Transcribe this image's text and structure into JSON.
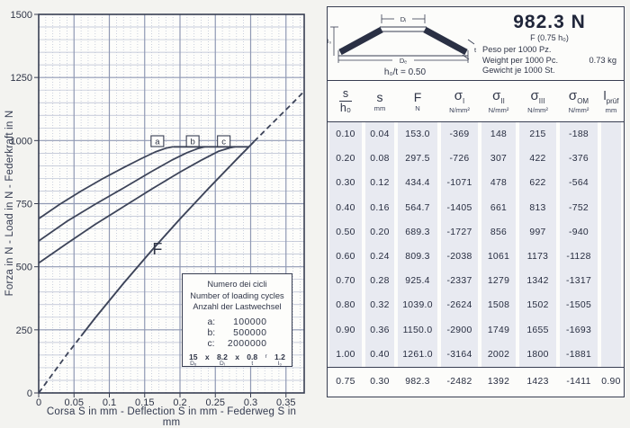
{
  "colors": {
    "ink": "#383e52",
    "curve": "#3d4459",
    "grid_minor": "#b6bdd0",
    "grid_major": "#9099b4",
    "row_tint": "#e8eaf1",
    "plot_bg": "#fdfdfb"
  },
  "spec": {
    "force": "982.3 N",
    "force_note": "F (0.75 h₀)",
    "weight_lines": [
      {
        "t": "Peso per 1000 Pz.",
        "v": ""
      },
      {
        "t": "Weight per 1000 Pc.",
        "v": "0.73 kg"
      },
      {
        "t": "Gewicht je 1000 St.",
        "v": ""
      }
    ],
    "ratio": "h₀/t = 0.50",
    "dims": {
      "inner": "Dᵢ",
      "outer": "Dₑ",
      "height": "l₀",
      "thickness": "t"
    }
  },
  "cycles_box": {
    "title_lines": [
      "Numero dei cicli",
      "Number of loading cycles",
      "Anzahl der Lastwechsel"
    ],
    "entries": [
      {
        "k": "a:",
        "v": "100000"
      },
      {
        "k": "b:",
        "v": "500000"
      },
      {
        "k": "c:",
        "v": "2000000"
      }
    ],
    "dims": [
      {
        "v": "15",
        "l": "Dₑ"
      },
      {
        "v": "x",
        "l": ""
      },
      {
        "v": "8.2",
        "l": "Dᵢ"
      },
      {
        "v": "x",
        "l": ""
      },
      {
        "v": "0.8",
        "l": "t"
      },
      {
        "v": "",
        "l": "r"
      },
      {
        "v": "1.2",
        "l": "l₀"
      }
    ]
  },
  "chart_data": {
    "type": "line",
    "title": "",
    "xlabel": "Corsa S in mm - Deflection S in mm - Federweg S in mm",
    "ylabel": "Forza in N - Load in N - Federkraft in N",
    "xlim": [
      0,
      0.376
    ],
    "ylim": [
      0,
      1500
    ],
    "grid": "on",
    "x_ticks": [
      {
        "v": 0,
        "label": "0"
      },
      {
        "v": 0.05,
        "label": "0.05"
      },
      {
        "v": 0.1,
        "label": "0.1"
      },
      {
        "v": 0.15,
        "label": "0.15"
      },
      {
        "v": 0.2,
        "label": "0.2"
      },
      {
        "v": 0.25,
        "label": "0.25"
      },
      {
        "v": 0.3,
        "label": "0.3"
      },
      {
        "v": 0.35,
        "label": "0.35"
      }
    ],
    "y_ticks": [
      {
        "v": 0,
        "label": "0"
      },
      {
        "v": 250,
        "label": "250"
      },
      {
        "v": 500,
        "label": "500"
      },
      {
        "v": 750,
        "label": "750"
      },
      {
        "v": 1000,
        "label": "1000"
      },
      {
        "v": 1250,
        "label": "1250"
      },
      {
        "v": 1500,
        "label": "1500"
      }
    ],
    "series": [
      {
        "name": "F",
        "solid_range": [
          0.06,
          0.305
        ],
        "points": [
          [
            0,
            0
          ],
          [
            0.04,
            153
          ],
          [
            0.08,
            297.5
          ],
          [
            0.12,
            434.4
          ],
          [
            0.16,
            564.7
          ],
          [
            0.2,
            689.3
          ],
          [
            0.24,
            809.3
          ],
          [
            0.28,
            925.4
          ],
          [
            0.3,
            982.3
          ],
          [
            0.32,
            1039
          ],
          [
            0.36,
            1150
          ],
          [
            0.376,
            1196
          ]
        ]
      },
      {
        "name": "a",
        "points": [
          [
            0,
            690
          ],
          [
            0.03,
            748
          ],
          [
            0.06,
            800
          ],
          [
            0.09,
            848
          ],
          [
            0.12,
            893
          ],
          [
            0.145,
            928
          ],
          [
            0.165,
            955
          ],
          [
            0.18,
            970
          ],
          [
            0.19,
            975
          ]
        ]
      },
      {
        "name": "b",
        "points": [
          [
            0,
            602
          ],
          [
            0.04,
            680
          ],
          [
            0.08,
            748
          ],
          [
            0.12,
            812
          ],
          [
            0.16,
            878
          ],
          [
            0.19,
            925
          ],
          [
            0.21,
            952
          ],
          [
            0.225,
            968
          ],
          [
            0.235,
            975
          ]
        ]
      },
      {
        "name": "c",
        "points": [
          [
            0,
            515
          ],
          [
            0.04,
            592
          ],
          [
            0.08,
            668
          ],
          [
            0.12,
            738
          ],
          [
            0.16,
            808
          ],
          [
            0.2,
            875
          ],
          [
            0.23,
            922
          ],
          [
            0.255,
            958
          ],
          [
            0.27,
            971
          ],
          [
            0.278,
            975
          ]
        ]
      },
      {
        "name": "fatigue-limit",
        "points": [
          [
            0.19,
            975
          ],
          [
            0.2975,
            975
          ]
        ]
      }
    ],
    "cycle_markers": [
      {
        "label": "a",
        "s": 0.168
      },
      {
        "label": "b",
        "s": 0.218
      },
      {
        "label": "c",
        "s": 0.262
      }
    ],
    "annotations": [
      {
        "text": "F",
        "s": 0.168,
        "N": 548,
        "size": 18
      }
    ]
  },
  "table": {
    "columns": [
      {
        "frac_top": "s",
        "frac_bottom": "h₀",
        "unit": ""
      },
      {
        "sym": "s",
        "unit": "mm"
      },
      {
        "sym": "F",
        "unit": "N"
      },
      {
        "sym": "σ",
        "sub": "I",
        "unit": "N/mm²"
      },
      {
        "sym": "σ",
        "sub": "II",
        "unit": "N/mm²"
      },
      {
        "sym": "σ",
        "sub": "III",
        "unit": "N/mm²"
      },
      {
        "sym": "σ",
        "sub": "OM",
        "unit": "N/mm²"
      },
      {
        "sym": "l",
        "sub": "prüf",
        "unit": "mm"
      }
    ],
    "rows": [
      [
        "0.10",
        "0.04",
        "153.0",
        "-369",
        "148",
        "215",
        "-188",
        ""
      ],
      [
        "0.20",
        "0.08",
        "297.5",
        "-726",
        "307",
        "422",
        "-376",
        ""
      ],
      [
        "0.30",
        "0.12",
        "434.4",
        "-1071",
        "478",
        "622",
        "-564",
        ""
      ],
      [
        "0.40",
        "0.16",
        "564.7",
        "-1405",
        "661",
        "813",
        "-752",
        ""
      ],
      [
        "0.50",
        "0.20",
        "689.3",
        "-1727",
        "856",
        "997",
        "-940",
        ""
      ],
      [
        "0.60",
        "0.24",
        "809.3",
        "-2038",
        "1061",
        "1173",
        "-1128",
        ""
      ],
      [
        "0.70",
        "0.28",
        "925.4",
        "-2337",
        "1279",
        "1342",
        "-1317",
        ""
      ],
      [
        "0.80",
        "0.32",
        "1039.0",
        "-2624",
        "1508",
        "1502",
        "-1505",
        ""
      ],
      [
        "0.90",
        "0.36",
        "1150.0",
        "-2900",
        "1749",
        "1655",
        "-1693",
        ""
      ],
      [
        "1.00",
        "0.40",
        "1261.0",
        "-3164",
        "2002",
        "1800",
        "-1881",
        ""
      ]
    ],
    "test_row": [
      "0.75",
      "0.30",
      "982.3",
      "-2482",
      "1392",
      "1423",
      "-1411",
      "0.90"
    ]
  }
}
